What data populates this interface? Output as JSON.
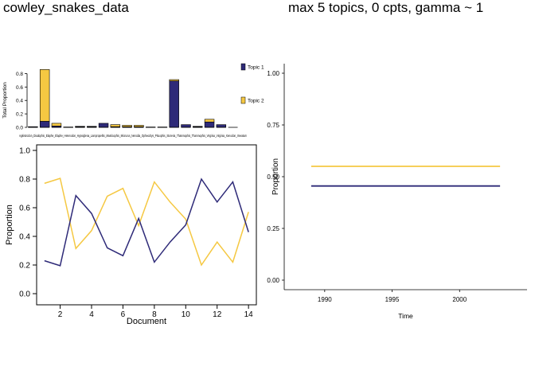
{
  "titles": {
    "left": "cowley_snakes_data",
    "right": "max 5 topics, 0 cpts, gamma ~ 1"
  },
  "colors": {
    "topic1": "#2e2a78",
    "topic2": "#f5c842",
    "axis": "#000000"
  },
  "chart_data": [
    {
      "type": "bar",
      "stacked": true,
      "ylabel": "Total Proportion",
      "ylim": [
        0,
        0.9
      ],
      "yticks": [
        "0.0",
        "0.2",
        "0.4",
        "0.6",
        "0.8"
      ],
      "legend_placement": "right",
      "categories": [
        "Agkistrodon",
        "Diadophis",
        "Elaphe",
        "Elaphe",
        "Heterodon",
        "Hypsiglena",
        "Lampropeltis",
        "Masticophis",
        "Micrurus",
        "Nerodia",
        "Opheodrys",
        "Pituophis",
        "Storeria",
        "Thamnophis",
        "Thamnophis",
        "Virginia",
        "Virginia",
        "Xenodon"
      ],
      "category_text": "Agkistrodon_Diadophis_Elaphe_Elaphe_Heterodon_Hypsiglena_Lampropeltis_Masticophis_Micrurus_Nerodia_Opheodrys_Pituophis_Storeria_Thamnophis_Thamnophis_Virginia_Virginia_Xenodon_Imeatum",
      "series": [
        {
          "name": "Topic 1",
          "values": [
            0.01,
            0.09,
            0.02,
            0.005,
            0.01,
            0.01,
            0.06,
            0.01,
            0.01,
            0.01,
            0.005,
            0.005,
            0.69,
            0.04,
            0.01,
            0.08,
            0.04,
            0.0
          ]
        },
        {
          "name": "Topic 2",
          "values": [
            0.0,
            0.77,
            0.04,
            0.0,
            0.005,
            0.005,
            0.0,
            0.03,
            0.02,
            0.02,
            0.0,
            0.0,
            0.02,
            0.0,
            0.005,
            0.04,
            0.0,
            0.0
          ]
        }
      ]
    },
    {
      "type": "line",
      "xlabel": "Document",
      "ylabel": "Proportion",
      "xlim": [
        0.5,
        14.5
      ],
      "ylim": [
        0,
        1
      ],
      "xticks": [
        "2",
        "4",
        "6",
        "8",
        "10",
        "12",
        "14"
      ],
      "yticks": [
        "0.0",
        "0.2",
        "0.4",
        "0.6",
        "0.8",
        "1.0"
      ],
      "x": [
        1,
        2,
        3,
        4,
        5,
        6,
        7,
        8,
        9,
        10,
        11,
        12,
        13,
        14
      ],
      "series": [
        {
          "name": "Topic 1",
          "values": [
            0.23,
            0.195,
            0.685,
            0.56,
            0.32,
            0.265,
            0.525,
            0.22,
            0.36,
            0.48,
            0.8,
            0.64,
            0.78,
            0.43
          ]
        },
        {
          "name": "Topic 2",
          "values": [
            0.77,
            0.805,
            0.315,
            0.44,
            0.68,
            0.735,
            0.475,
            0.78,
            0.64,
            0.52,
            0.2,
            0.36,
            0.22,
            0.57
          ]
        }
      ]
    },
    {
      "type": "line",
      "xlabel": "Time",
      "ylabel": "Proportion",
      "xlim": [
        1987,
        2005
      ],
      "ylim": [
        0,
        1
      ],
      "xticks": [
        "1990",
        "1995",
        "2000"
      ],
      "yticks": [
        "0.00",
        "0.25",
        "0.50",
        "0.75",
        "1.00"
      ],
      "x": [
        1989,
        2003
      ],
      "series": [
        {
          "name": "Topic 1",
          "values": [
            0.455,
            0.455
          ]
        },
        {
          "name": "Topic 2",
          "values": [
            0.55,
            0.55
          ]
        }
      ]
    }
  ]
}
